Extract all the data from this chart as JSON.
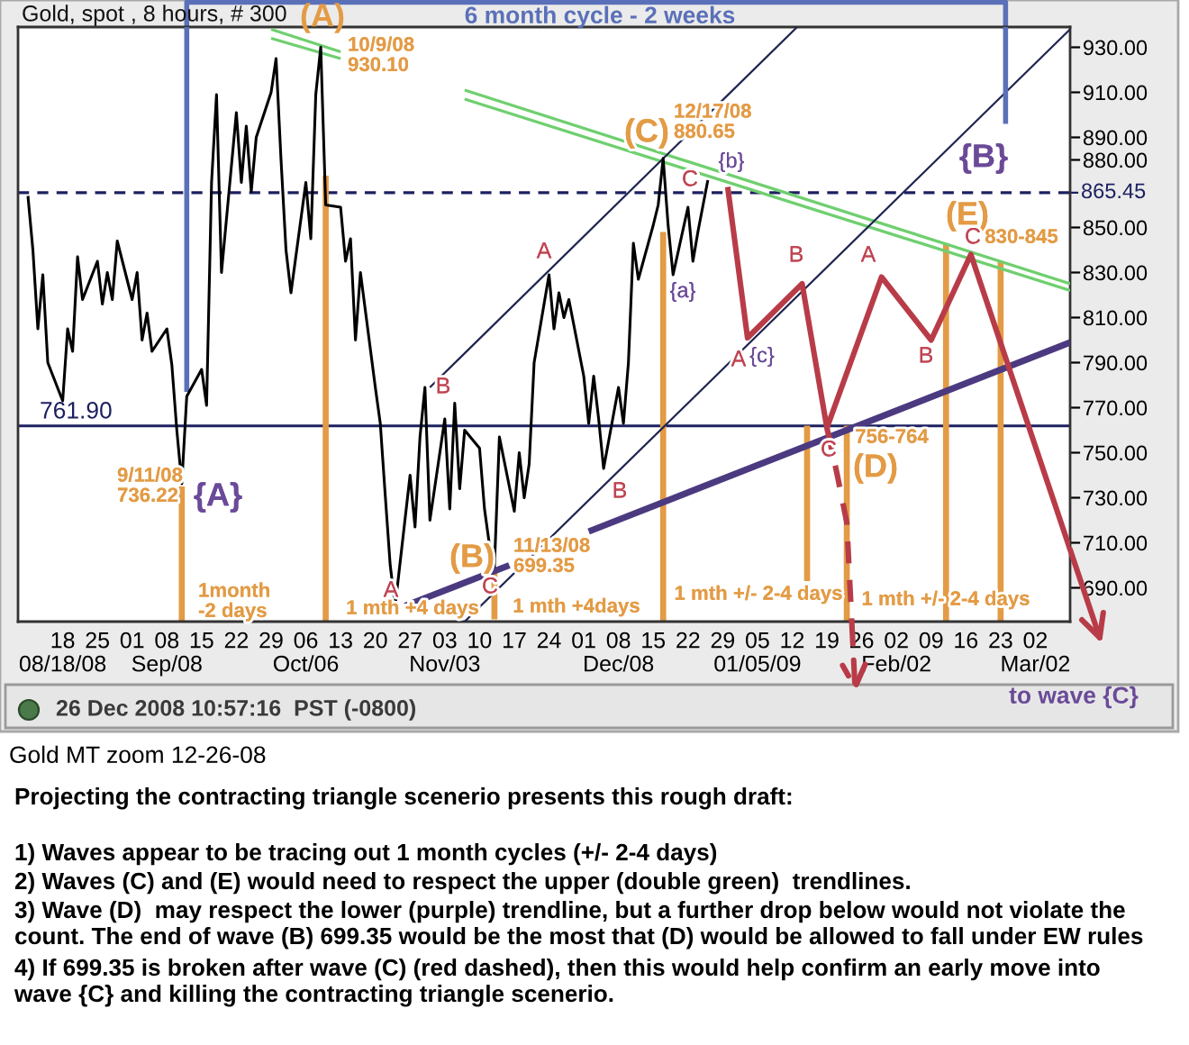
{
  "chart_data": {
    "type": "line",
    "title": "Gold, spot , 8 hours, # 300",
    "xlim": [
      "2008-08-09",
      "2009-03-09"
    ],
    "xticks": [
      {
        "value": "2008-08-18",
        "label": "18\n08/18/08"
      },
      {
        "value": "2008-08-25",
        "label": "25"
      },
      {
        "value": "2008-09-01",
        "label": "01"
      },
      {
        "value": "2008-09-08",
        "label": "08\nSep/08"
      },
      {
        "value": "2008-09-15",
        "label": "15"
      },
      {
        "value": "2008-09-22",
        "label": "22"
      },
      {
        "value": "2008-09-29",
        "label": "29"
      },
      {
        "value": "2008-10-06",
        "label": "06\nOct/06"
      },
      {
        "value": "2008-10-13",
        "label": "13"
      },
      {
        "value": "2008-10-20",
        "label": "20"
      },
      {
        "value": "2008-10-27",
        "label": "27"
      },
      {
        "value": "2008-11-03",
        "label": "03\nNov/03"
      },
      {
        "value": "2008-11-10",
        "label": "10"
      },
      {
        "value": "2008-11-17",
        "label": "17"
      },
      {
        "value": "2008-11-24",
        "label": "24"
      },
      {
        "value": "2008-12-01",
        "label": "01"
      },
      {
        "value": "2008-12-08",
        "label": "08\nDec/08"
      },
      {
        "value": "2008-12-15",
        "label": "15"
      },
      {
        "value": "2008-12-22",
        "label": "22"
      },
      {
        "value": "2008-12-29",
        "label": "29"
      },
      {
        "value": "2009-01-05",
        "label": "05\n01/05/09"
      },
      {
        "value": "2009-01-12",
        "label": "12"
      },
      {
        "value": "2009-01-19",
        "label": "19"
      },
      {
        "value": "2009-01-26",
        "label": "26"
      },
      {
        "value": "2009-02-02",
        "label": "02\nFeb/02"
      },
      {
        "value": "2009-02-09",
        "label": "09"
      },
      {
        "value": "2009-02-16",
        "label": "16"
      },
      {
        "value": "2009-02-23",
        "label": "23"
      },
      {
        "value": "2009-03-02",
        "label": "02\nMar/02"
      }
    ],
    "ylim": [
      675,
      939
    ],
    "yticks": [
      {
        "value": 930,
        "label": "930.00"
      },
      {
        "value": 910,
        "label": "910.00"
      },
      {
        "value": 890,
        "label": "890.00"
      },
      {
        "value": 880,
        "label": "880.00"
      },
      {
        "value": 850,
        "label": "850.00"
      },
      {
        "value": 830,
        "label": "830.00"
      },
      {
        "value": 810,
        "label": "810.00"
      },
      {
        "value": 790,
        "label": "790.00"
      },
      {
        "value": 770,
        "label": "770.00"
      },
      {
        "value": 750,
        "label": "750.00"
      },
      {
        "value": 730,
        "label": "730.00"
      },
      {
        "value": 710,
        "label": "710.00"
      },
      {
        "value": 690,
        "label": "690.00"
      }
    ],
    "series": [
      {
        "color": "#000000",
        "x": [
          "2008-08-11",
          "2008-08-12",
          "2008-08-13",
          "2008-08-14",
          "2008-08-15",
          "2008-08-18",
          "2008-08-19",
          "2008-08-20",
          "2008-08-21",
          "2008-08-22",
          "2008-08-25",
          "2008-08-26",
          "2008-08-27",
          "2008-08-28",
          "2008-08-29",
          "2008-09-01",
          "2008-09-02",
          "2008-09-03",
          "2008-09-04",
          "2008-09-05",
          "2008-09-08",
          "2008-09-09",
          "2008-09-10",
          "2008-09-11",
          "2008-09-12",
          "2008-09-15",
          "2008-09-16",
          "2008-09-17",
          "2008-09-18",
          "2008-09-19",
          "2008-09-22",
          "2008-09-23",
          "2008-09-24",
          "2008-09-25",
          "2008-09-26",
          "2008-09-29",
          "2008-09-30",
          "2008-10-01",
          "2008-10-02",
          "2008-10-03",
          "2008-10-06",
          "2008-10-07",
          "2008-10-08",
          "2008-10-09",
          "2008-10-10",
          "2008-10-13",
          "2008-10-14",
          "2008-10-15",
          "2008-10-16",
          "2008-10-17",
          "2008-10-20",
          "2008-10-21",
          "2008-10-22",
          "2008-10-23",
          "2008-10-24",
          "2008-10-27",
          "2008-10-28",
          "2008-10-29",
          "2008-10-30",
          "2008-10-31",
          "2008-11-03",
          "2008-11-04",
          "2008-11-05",
          "2008-11-06",
          "2008-11-07",
          "2008-11-10",
          "2008-11-11",
          "2008-11-12",
          "2008-11-13",
          "2008-11-14",
          "2008-11-17",
          "2008-11-18",
          "2008-11-19",
          "2008-11-20",
          "2008-11-21",
          "2008-11-24",
          "2008-11-25",
          "2008-11-26",
          "2008-11-27",
          "2008-11-28",
          "2008-12-01",
          "2008-12-02",
          "2008-12-03",
          "2008-12-04",
          "2008-12-05",
          "2008-12-08",
          "2008-12-09",
          "2008-12-10",
          "2008-12-11",
          "2008-12-12",
          "2008-12-15",
          "2008-12-16",
          "2008-12-17",
          "2008-12-18",
          "2008-12-19",
          "2008-12-22",
          "2008-12-23",
          "2008-12-24",
          "2008-12-26"
        ],
        "values": [
          864,
          840,
          805,
          829,
          790,
          773,
          805,
          795,
          837,
          818,
          835,
          816,
          830,
          818,
          844,
          818,
          830,
          800,
          812,
          795,
          805,
          789,
          760,
          736.22,
          775,
          787,
          771,
          870,
          909,
          830,
          901,
          870,
          895,
          866,
          890,
          910,
          925,
          880,
          840,
          821,
          870,
          845,
          909,
          930.1,
          860,
          859,
          835,
          845,
          800,
          830,
          779,
          763,
          731,
          700,
          682,
          740,
          717,
          757,
          779,
          720,
          765,
          725,
          772,
          734,
          760,
          752,
          725,
          709,
          699.35,
          757,
          724,
          750,
          730,
          745,
          790,
          829,
          805,
          821,
          810,
          818,
          784,
          763,
          784,
          765,
          743,
          779,
          763,
          790,
          843,
          827,
          851,
          860,
          880.65,
          851,
          829,
          859,
          835,
          848,
          871
        ]
      },
      {
        "color": "#6fcf6f",
        "x": [
          "2008-09-29",
          "2008-10-13"
        ],
        "values": [
          938,
          928
        ]
      },
      {
        "color": "#6fcf6f",
        "x": [
          "2008-11-07",
          "2009-03-09"
        ],
        "values": [
          911,
          825
        ]
      },
      {
        "color": "#6fcf6f",
        "x": [
          "2008-09-29",
          "2008-10-13"
        ],
        "values": [
          934,
          925
        ]
      },
      {
        "color": "#6fcf6f",
        "x": [
          "2008-11-07",
          "2009-03-09"
        ],
        "values": [
          907,
          822
        ]
      },
      {
        "color": "#1e2450",
        "x": [
          "2008-10-31",
          "2009-01-13"
        ],
        "values": [
          779,
          939
        ]
      },
      {
        "color": "#1e2450",
        "x": [
          "2008-11-07",
          "2009-03-09"
        ],
        "values": [
          675,
          938
        ]
      },
      {
        "color": "#4b3a80",
        "x": [
          "2008-10-26",
          "2008-11-16"
        ],
        "values": [
          682,
          700
        ]
      },
      {
        "color": "#4b3a80",
        "x": [
          "2008-12-02",
          "2009-03-09"
        ],
        "values": [
          715,
          799
        ]
      },
      {
        "color": "#e39b45",
        "x": [
          "2008-09-11",
          "2008-09-11"
        ],
        "values": [
          735,
          675
        ]
      },
      {
        "color": "#e39b45",
        "x": [
          "2008-10-10",
          "2008-10-10"
        ],
        "values": [
          873,
          675
        ]
      },
      {
        "color": "#e39b45",
        "x": [
          "2008-11-13",
          "2008-11-13"
        ],
        "values": [
          699,
          676
        ]
      },
      {
        "color": "#e39b45",
        "x": [
          "2008-12-17",
          "2008-12-17"
        ],
        "values": [
          848,
          675
        ]
      },
      {
        "color": "#e39b45",
        "x": [
          "2009-01-15",
          "2009-01-15"
        ],
        "values": [
          762,
          693
        ]
      },
      {
        "color": "#e39b45",
        "x": [
          "2009-01-23",
          "2009-01-23"
        ],
        "values": [
          762,
          675
        ]
      },
      {
        "color": "#e39b45",
        "x": [
          "2009-02-12",
          "2009-02-12"
        ],
        "values": [
          843,
          675
        ]
      },
      {
        "color": "#e39b45",
        "x": [
          "2009-02-23",
          "2009-02-23"
        ],
        "values": [
          835,
          675
        ]
      },
      {
        "color": "#5a70b8",
        "x": [
          "2008-09-12",
          "2008-09-12"
        ],
        "values": [
          939,
          777
        ]
      },
      {
        "color": "#5a70b8",
        "x": [
          "2009-02-24",
          "2009-02-24"
        ],
        "values": [
          939,
          896
        ]
      },
      {
        "color": "#b83c48",
        "x": [
          "2008-12-30",
          "2009-01-03",
          "2009-01-14",
          "2009-01-19",
          "2009-01-30",
          "2009-02-09",
          "2009-02-17",
          "2009-03-09"
        ],
        "values": [
          868,
          801,
          825,
          761,
          828,
          800,
          838,
          707
        ]
      },
      {
        "color": "#b83c48",
        "line_style": "dashed",
        "x": [
          "2009-01-19",
          "2009-01-21",
          "2009-01-23",
          "2009-01-24"
        ],
        "values": [
          761,
          741,
          719,
          675
        ]
      }
    ],
    "ref_lines": [
      {
        "axis": "y",
        "value": 865.45,
        "label": "865.45",
        "line_style": "dashed",
        "color": "#1c2060"
      },
      {
        "axis": "y",
        "value": 761.9,
        "label": "761.90",
        "color": "#1c2060"
      }
    ],
    "annotations": [
      "(A)",
      "6 month cycle - 2 weeks",
      "10/9/08\n930.10",
      "9/11/08\n736.22",
      "{A}",
      "1month\n-2 days",
      "A",
      "1 mth +4 days",
      "B",
      "(B)",
      "C",
      "11/13/08\n699.35",
      "1 mth +4days",
      "A",
      "B",
      "(C)",
      "C",
      "12/17/08\n880.65",
      "{a}",
      "{b}",
      "A",
      "{c}",
      "1 mth +/- 2-4 days",
      "B",
      "C",
      "756-764",
      "(D)",
      "1 mth +/- 2-4 days",
      "A",
      "B",
      "(E)",
      "C",
      "830-845",
      "{B}",
      "to wave {C}",
      "26 Dec 2008 10:57:16  PST (-0800)",
      "Gold MT zoom 12-26-08",
      "Projecting the contracting triangle scenerio presents this rough draft:",
      "1) Waves appear to be tracing out 1 month cycles (+/- 2-4 days)",
      "2) Waves (C) and (E) would need to respect the upper (double green)  trendlines.",
      "3) Wave (D)  may respect the lower (purple) trendline, but a further drop below would not violate the\ncount. The end of wave (B) 699.35 would be the most that (D) would be allowed to fall under EW rules",
      "4) If 699.35 is broken after wave (C) (red dashed), then this would help confirm an early move into\nwave {C} and killing the contracting triangle scenerio."
    ]
  }
}
